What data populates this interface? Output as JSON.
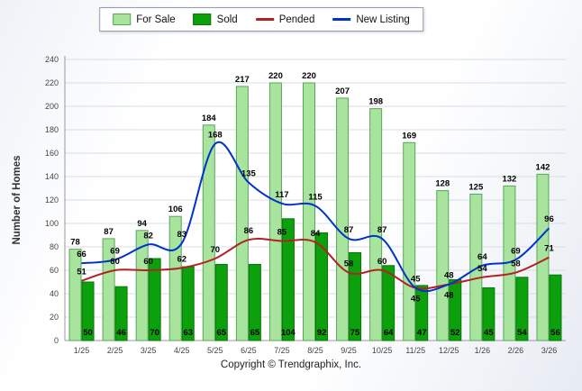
{
  "chart_data": {
    "type": "combo-bar-line",
    "title": "",
    "ylabel": "Number of Homes",
    "xlabel": "",
    "ylim": [
      0,
      240
    ],
    "ytick_step": 20,
    "grid": true,
    "legend_position": "top",
    "categories": [
      "1/25",
      "2/25",
      "3/25",
      "4/25",
      "5/25",
      "6/25",
      "7/25",
      "8/25",
      "9/25",
      "10/25",
      "11/25",
      "12/25",
      "1/26",
      "2/26",
      "3/26"
    ],
    "series": [
      {
        "name": "For Sale",
        "type": "bar",
        "color": "#a8e49e",
        "border": "#59a659",
        "values": [
          78,
          87,
          94,
          106,
          184,
          217,
          220,
          220,
          207,
          198,
          169,
          128,
          125,
          132,
          142
        ]
      },
      {
        "name": "Sold",
        "type": "bar",
        "color": "#0ca00c",
        "border": "#067806",
        "values": [
          50,
          46,
          70,
          63,
          65,
          65,
          104,
          92,
          75,
          64,
          47,
          52,
          45,
          54,
          56
        ]
      },
      {
        "name": "Pended",
        "type": "line",
        "color": "#b22222",
        "values": [
          51,
          60,
          60,
          62,
          70,
          86,
          85,
          84,
          58,
          60,
          45,
          48,
          54,
          58,
          71
        ]
      },
      {
        "name": "New Listing",
        "type": "line",
        "color": "#0033cc",
        "values": [
          66,
          69,
          82,
          83,
          168,
          135,
          117,
          115,
          87,
          87,
          45,
          48,
          64,
          69,
          96
        ]
      }
    ]
  },
  "footer": {
    "copyright": "Copyright © Trendgraphix, Inc."
  }
}
